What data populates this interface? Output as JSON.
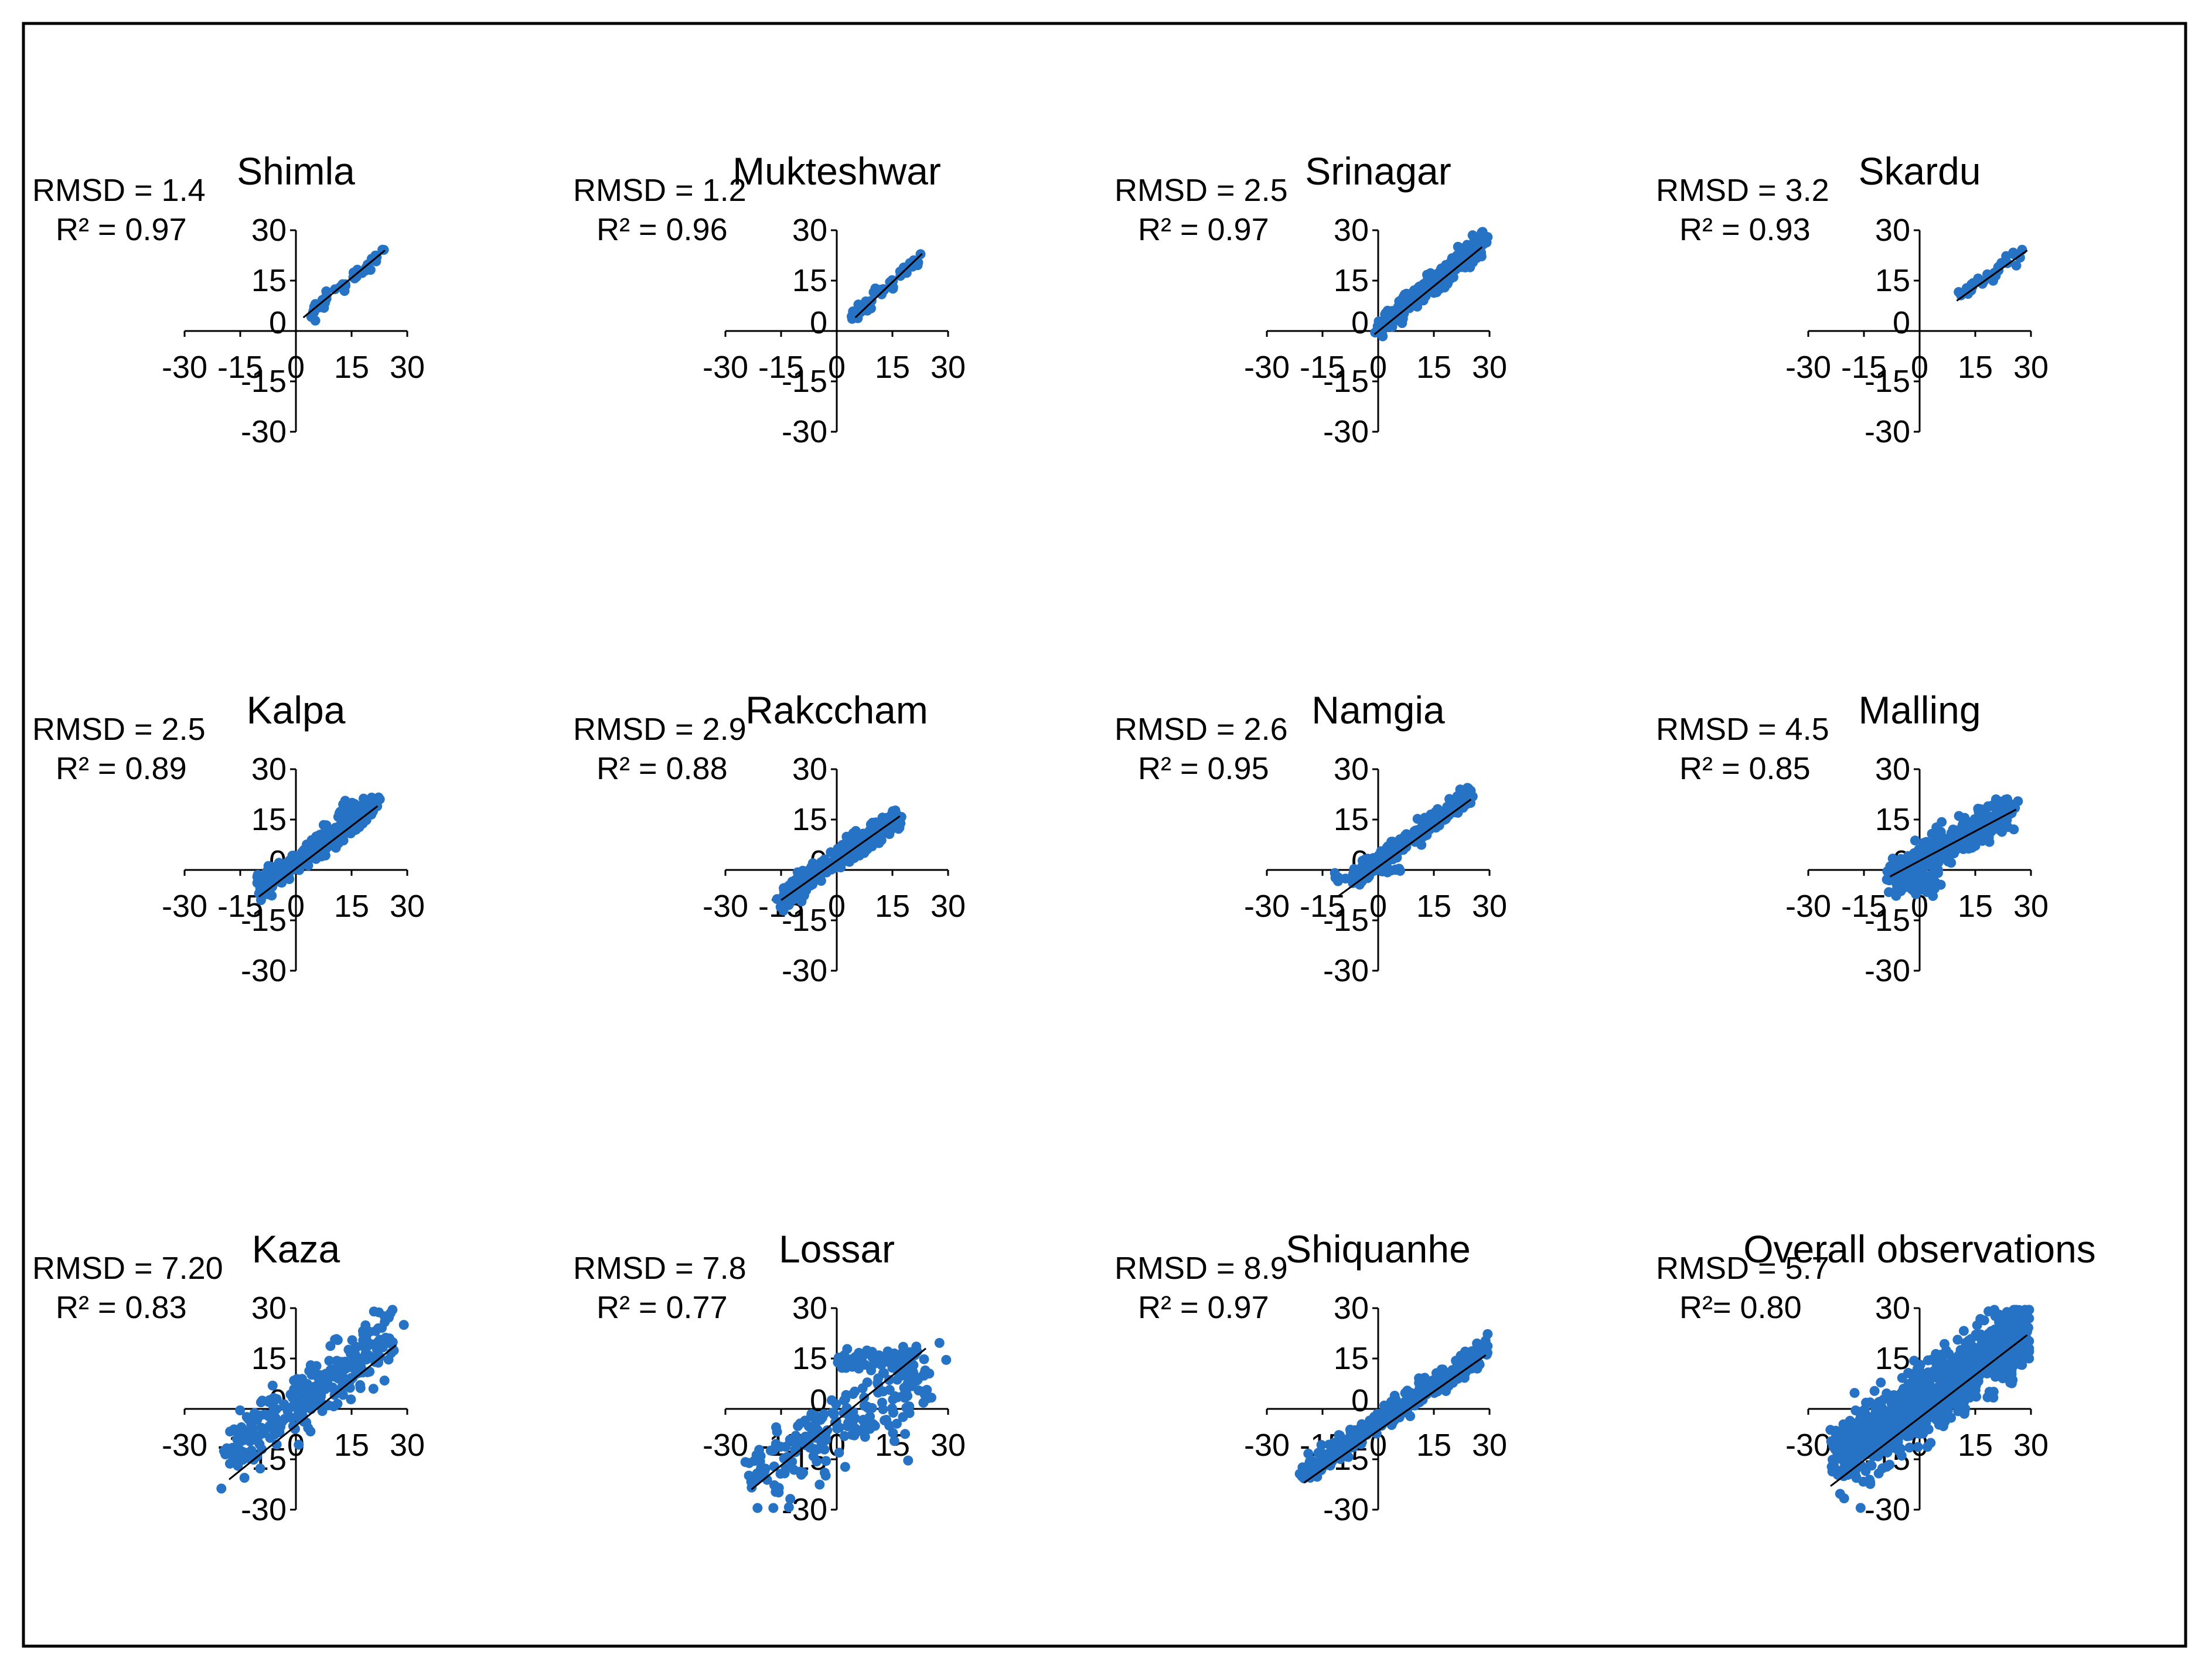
{
  "colors": {
    "points": "#2673c5",
    "axes": "#000000",
    "fit_line": "#000000",
    "frame": "#000000"
  },
  "chart_data": [
    {
      "type": "scatter",
      "title": "Shimla",
      "rmsd_text": "RMSD = 1.4",
      "r2_text": "R² = 0.97",
      "xlim": [
        -30,
        30
      ],
      "ylim": [
        -30,
        30
      ],
      "ticks": [
        "-30",
        "-15",
        "0",
        "15",
        "30"
      ],
      "fit": {
        "x": [
          2,
          24
        ],
        "y": [
          4,
          24
        ]
      },
      "clusters": [
        {
          "x": [
            2,
            24
          ],
          "y": [
            4,
            24
          ],
          "spread": 1.2,
          "n": 45,
          "seed": 11
        }
      ]
    },
    {
      "type": "scatter",
      "title": "Mukteshwar",
      "rmsd_text": "RMSD = 1.2",
      "r2_text": "R² = 0.96",
      "xlim": [
        -30,
        30
      ],
      "ylim": [
        -30,
        30
      ],
      "ticks": [
        "-30",
        "-15",
        "0",
        "15",
        "30"
      ],
      "fit": {
        "x": [
          5,
          23
        ],
        "y": [
          4,
          23
        ]
      },
      "clusters": [
        {
          "x": [
            4,
            23
          ],
          "y": [
            4,
            23
          ],
          "spread": 1.2,
          "n": 45,
          "seed": 12
        }
      ]
    },
    {
      "type": "scatter",
      "title": "Srinagar",
      "rmsd_text": "RMSD = 2.5",
      "r2_text": "R² = 0.97",
      "xlim": [
        -30,
        30
      ],
      "ylim": [
        -30,
        30
      ],
      "ticks": [
        "-30",
        "-15",
        "0",
        "15",
        "30"
      ],
      "fit": {
        "x": [
          -1,
          28
        ],
        "y": [
          -1,
          25
        ]
      },
      "clusters": [
        {
          "x": [
            0,
            29
          ],
          "y": [
            1,
            27
          ],
          "spread": 1.6,
          "n": 320,
          "seed": 13
        }
      ]
    },
    {
      "type": "scatter",
      "title": "Skardu",
      "rmsd_text": "RMSD = 3.2",
      "r2_text": "R² = 0.93",
      "xlim": [
        -30,
        30
      ],
      "ylim": [
        -30,
        30
      ],
      "ticks": [
        "-30",
        "-15",
        "0",
        "15",
        "30"
      ],
      "fit": {
        "x": [
          10,
          29
        ],
        "y": [
          9,
          24
        ]
      },
      "clusters": [
        {
          "x": [
            10,
            29
          ],
          "y": [
            10,
            25
          ],
          "spread": 1.0,
          "n": 30,
          "seed": 14
        }
      ]
    },
    {
      "type": "scatter",
      "title": "Kalpa",
      "rmsd_text": "RMSD = 2.5",
      "r2_text": "R² = 0.89",
      "xlim": [
        -30,
        30
      ],
      "ylim": [
        -30,
        30
      ],
      "ticks": [
        "-30",
        "-15",
        "0",
        "15",
        "30"
      ],
      "fit": {
        "x": [
          -10,
          22
        ],
        "y": [
          -8,
          19
        ]
      },
      "clusters": [
        {
          "x": [
            -10,
            20
          ],
          "y": [
            -5,
            18
          ],
          "spread": 1.8,
          "n": 260,
          "seed": 15
        },
        {
          "x": [
            12,
            22
          ],
          "y": [
            17,
            19
          ],
          "spread": 1.5,
          "n": 80,
          "seed": 16
        }
      ]
    },
    {
      "type": "scatter",
      "title": "Rakccham",
      "rmsd_text": "RMSD = 2.9",
      "r2_text": "R² = 0.88",
      "xlim": [
        -30,
        30
      ],
      "ylim": [
        -30,
        30
      ],
      "ticks": [
        "-30",
        "-15",
        "0",
        "15",
        "30"
      ],
      "fit": {
        "x": [
          -15,
          17
        ],
        "y": [
          -9,
          16
        ]
      },
      "clusters": [
        {
          "x": [
            -15,
            17
          ],
          "y": [
            -8,
            16
          ],
          "spread": 1.8,
          "n": 320,
          "seed": 17
        }
      ]
    },
    {
      "type": "scatter",
      "title": "Namgia",
      "rmsd_text": "RMSD = 2.6",
      "r2_text": "R² = 0.95",
      "xlim": [
        -30,
        30
      ],
      "ylim": [
        -30,
        30
      ],
      "ticks": [
        "-30",
        "-15",
        "0",
        "15",
        "30"
      ],
      "fit": {
        "x": [
          -11,
          25
        ],
        "y": [
          -8,
          21
        ]
      },
      "clusters": [
        {
          "x": [
            -7,
            25
          ],
          "y": [
            -3,
            22
          ],
          "spread": 1.5,
          "n": 300,
          "seed": 18
        },
        {
          "x": [
            0,
            7
          ],
          "y": [
            0,
            0
          ],
          "spread": 0.3,
          "n": 12,
          "seed": 19
        },
        {
          "x": [
            -12,
            -3
          ],
          "y": [
            -2,
            -2
          ],
          "spread": 1.0,
          "n": 12,
          "seed": 20
        }
      ]
    },
    {
      "type": "scatter",
      "title": "Malling",
      "rmsd_text": "RMSD = 4.5",
      "r2_text": "R² = 0.85",
      "xlim": [
        -30,
        30
      ],
      "ylim": [
        -30,
        30
      ],
      "ticks": [
        "-30",
        "-15",
        "0",
        "15",
        "30"
      ],
      "fit": {
        "x": [
          -8,
          26
        ],
        "y": [
          -2,
          18
        ]
      },
      "clusters": [
        {
          "x": [
            -8,
            25
          ],
          "y": [
            -2,
            18
          ],
          "spread": 2.5,
          "n": 320,
          "seed": 21
        },
        {
          "x": [
            -5,
            5
          ],
          "y": [
            -4,
            -4
          ],
          "spread": 2.0,
          "n": 40,
          "seed": 22
        }
      ]
    },
    {
      "type": "scatter",
      "title": "Kaza",
      "rmsd_text": "RMSD = 7.20",
      "r2_text": "R² = 0.83",
      "xlim": [
        -30,
        30
      ],
      "ylim": [
        -30,
        30
      ],
      "ticks": [
        "-30",
        "-15",
        "0",
        "15",
        "30"
      ],
      "fit": {
        "x": [
          -18,
          27
        ],
        "y": [
          -21,
          19
        ]
      },
      "clusters": [
        {
          "x": [
            -18,
            27
          ],
          "y": [
            -13,
            22
          ],
          "spread": 4.5,
          "n": 280,
          "seed": 23
        }
      ]
    },
    {
      "type": "scatter",
      "title": "Lossar",
      "rmsd_text": "RMSD = 7.8",
      "r2_text": "R² = 0.77",
      "xlim": [
        -30,
        30
      ],
      "ylim": [
        -30,
        30
      ],
      "ticks": [
        "-30",
        "-15",
        "0",
        "15",
        "30"
      ],
      "fit": {
        "x": [
          -23,
          24
        ],
        "y": [
          -24,
          18
        ]
      },
      "clusters": [
        {
          "x": [
            -23,
            24
          ],
          "y": [
            -20,
            10
          ],
          "spread": 7.0,
          "n": 220,
          "seed": 24
        },
        {
          "x": [
            0,
            22
          ],
          "y": [
            14,
            16
          ],
          "spread": 1.2,
          "n": 60,
          "seed": 25
        }
      ]
    },
    {
      "type": "scatter",
      "title": "Shiquanhe",
      "rmsd_text": "RMSD = 8.9",
      "r2_text": "R² = 0.97",
      "xlim": [
        -30,
        30
      ],
      "ylim": [
        -30,
        30
      ],
      "ticks": [
        "-30",
        "-15",
        "0",
        "15",
        "30"
      ],
      "fit": {
        "x": [
          -20,
          29
        ],
        "y": [
          -22,
          16
        ]
      },
      "clusters": [
        {
          "x": [
            -20,
            29
          ],
          "y": [
            -19,
            18
          ],
          "spread": 1.8,
          "n": 320,
          "seed": 26
        }
      ]
    },
    {
      "type": "scatter",
      "title": "Overall observations",
      "rmsd_text": "RMSD = 5.7",
      "r2_text": "R²= 0.80",
      "xlim": [
        -30,
        30
      ],
      "ylim": [
        -30,
        30
      ],
      "ticks": [
        "-30",
        "-15",
        "0",
        "15",
        "30"
      ],
      "fit": {
        "x": [
          -24,
          29
        ],
        "y": [
          -23,
          22
        ]
      },
      "clusters": [
        {
          "x": [
            -22,
            29
          ],
          "y": [
            -15,
            23
          ],
          "spread": 5.0,
          "n": 1100,
          "seed": 27
        }
      ]
    }
  ]
}
